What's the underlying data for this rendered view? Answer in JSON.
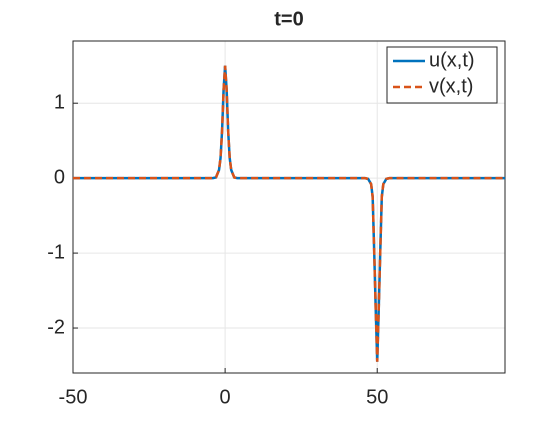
{
  "chart_data": {
    "type": "line",
    "title": "t=0",
    "x": [
      -50,
      -4,
      -3,
      -2,
      -1.5,
      -1,
      -0.5,
      0,
      0.5,
      1,
      1.5,
      2,
      3,
      4,
      46,
      47,
      48,
      48.5,
      49,
      49.5,
      50,
      50.5,
      51,
      51.5,
      52,
      53,
      54,
      92
    ],
    "series": [
      {
        "name": "u(x,t)",
        "color": "#0072bd",
        "dash": "solid",
        "values": [
          0,
          0,
          0.01,
          0.11,
          0.27,
          0.63,
          1.18,
          1.5,
          1.18,
          0.63,
          0.27,
          0.11,
          0.01,
          0,
          0,
          -0.01,
          -0.08,
          -0.25,
          -0.97,
          -1.74,
          -2.45,
          -1.74,
          -0.97,
          -0.25,
          -0.08,
          -0.01,
          0,
          0
        ]
      },
      {
        "name": "v(x,t)",
        "color": "#d95319",
        "dash": "dashed",
        "values": [
          0,
          0,
          0.01,
          0.11,
          0.27,
          0.63,
          1.18,
          1.5,
          1.18,
          0.63,
          0.27,
          0.11,
          0.01,
          0,
          0,
          -0.01,
          -0.08,
          -0.25,
          -0.97,
          -1.74,
          -2.45,
          -1.74,
          -0.97,
          -0.25,
          -0.08,
          -0.01,
          0,
          0
        ]
      }
    ],
    "xlim": [
      -50,
      92
    ],
    "ylim": [
      -2.6,
      1.83
    ],
    "xticks": [
      -50,
      0,
      50
    ],
    "yticks": [
      -2,
      -1,
      0,
      1
    ],
    "grid": true,
    "legend": "top-right"
  }
}
